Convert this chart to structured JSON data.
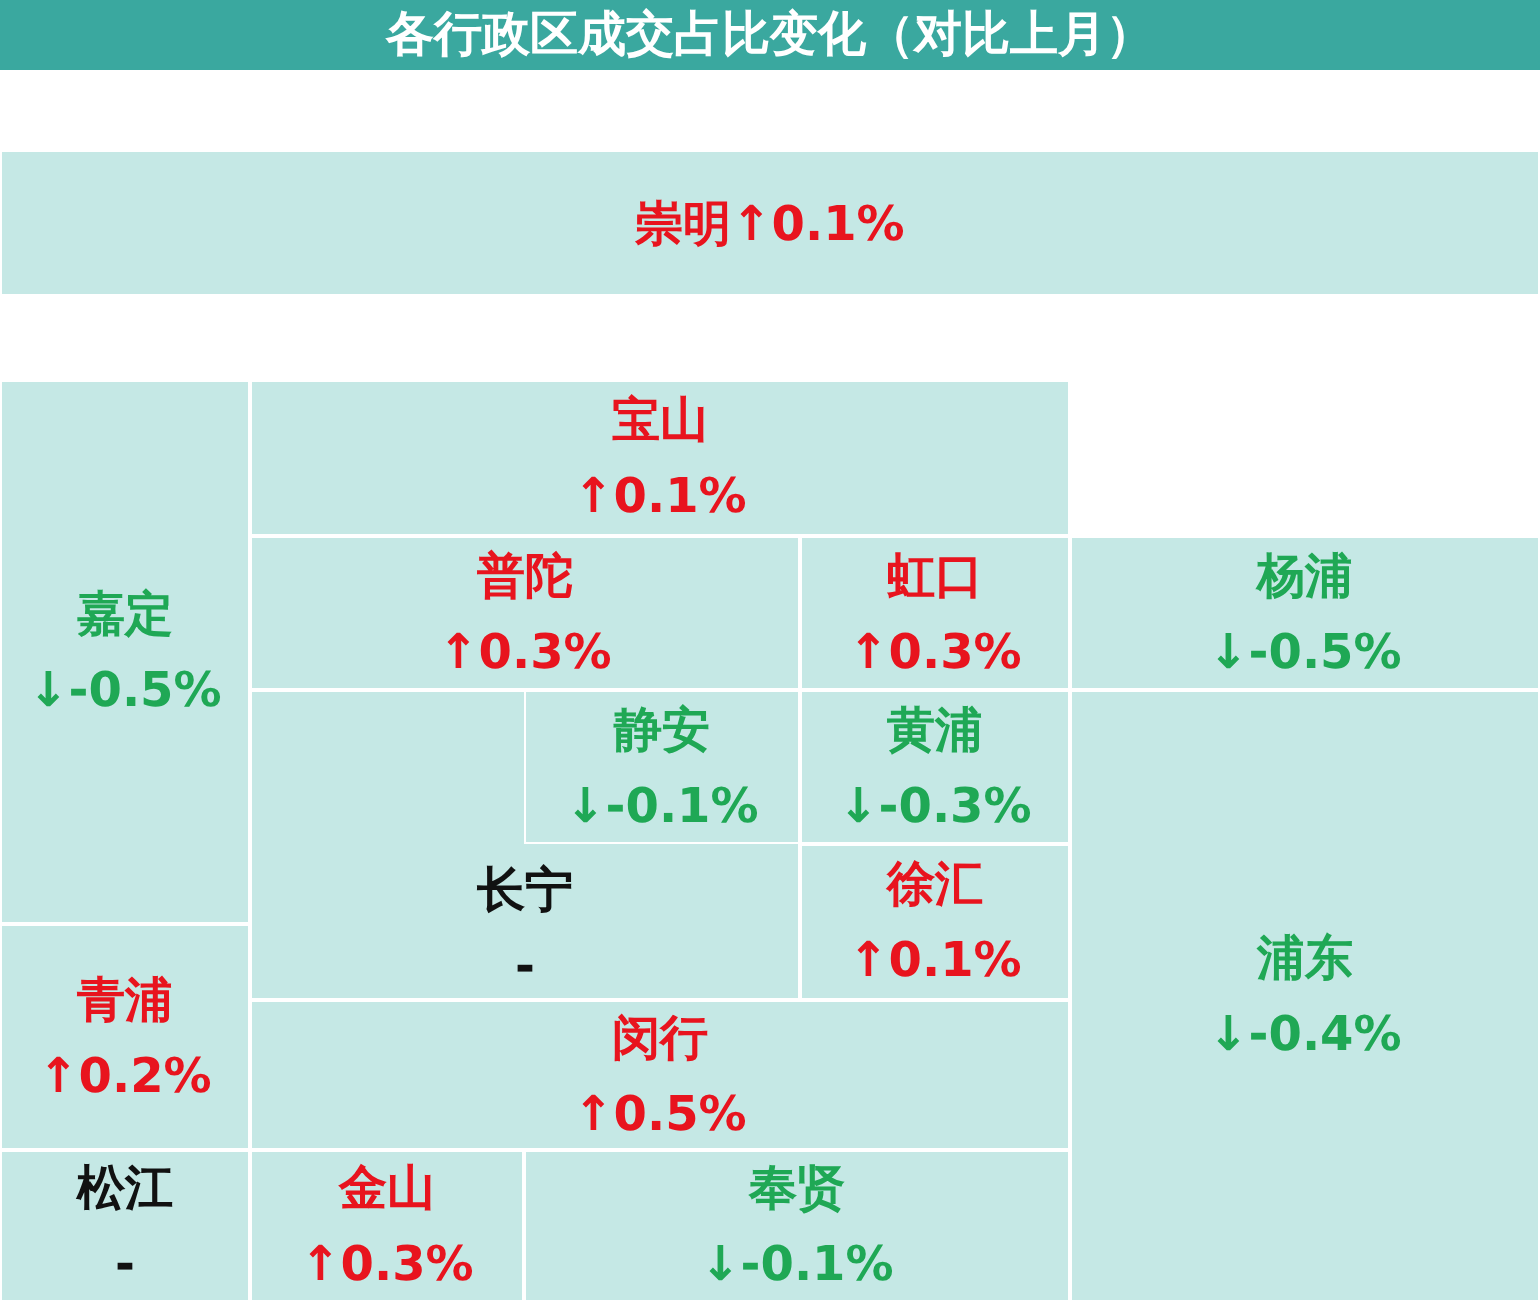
{
  "chart_data": {
    "type": "other",
    "title": "各行政区成交占比变化（对比上月）",
    "categories": [
      "崇明",
      "宝山",
      "嘉定",
      "普陀",
      "虹口",
      "杨浦",
      "静安",
      "黄浦",
      "长宁",
      "徐汇",
      "浦东",
      "青浦",
      "闵行",
      "松江",
      "金山",
      "奉贤"
    ],
    "values": [
      0.1,
      0.1,
      -0.5,
      0.3,
      0.3,
      -0.5,
      -0.1,
      -0.3,
      null,
      0.1,
      -0.4,
      0.2,
      0.5,
      null,
      0.3,
      -0.1
    ],
    "value_labels": [
      "↑0.1%",
      "↑0.1%",
      "↓-0.5%",
      "↑0.3%",
      "↑0.3%",
      "↓-0.5%",
      "↓-0.1%",
      "↓-0.3%",
      "-",
      "↑0.1%",
      "↓-0.4%",
      "↑0.2%",
      "↑0.5%",
      "-",
      "↑0.3%",
      "↓-0.1%"
    ]
  }
}
